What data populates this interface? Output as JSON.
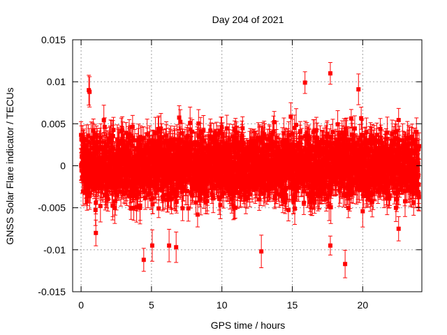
{
  "chart_data": {
    "type": "scatter",
    "title": "Day 204 of 2021",
    "xlabel": "GPS time / hours",
    "ylabel": "GNSS Solar Flare indicator / TECUs",
    "xlim": [
      -0.6,
      24.2
    ],
    "ylim": [
      -0.015,
      0.015
    ],
    "xticks": [
      0,
      5,
      10,
      15,
      20
    ],
    "xtick_labels": [
      "0",
      "5",
      "10",
      "15",
      "20"
    ],
    "yticks": [
      -0.015,
      -0.01,
      -0.005,
      0,
      0.005,
      0.01,
      0.015
    ],
    "ytick_labels": [
      "-0.015",
      "-0.01",
      "-0.005",
      "0",
      "0.005",
      "0.01",
      "0.015"
    ],
    "grid": true,
    "legend": "none",
    "error_bars": true,
    "point_color": "#ff0000",
    "series": [
      {
        "x_start": 0.0,
        "x_end": 24.0,
        "points_per_hour": 120,
        "y_typical_range": [
          -0.006,
          0.006
        ],
        "error_bar_typical": 0.0015,
        "outliers": [
          {
            "x": 0.55,
            "y": 0.009
          },
          {
            "x": 0.6,
            "y": 0.0088
          },
          {
            "x": 4.45,
            "y": -0.0112
          },
          {
            "x": 5.05,
            "y": -0.0095
          },
          {
            "x": 6.25,
            "y": -0.0095
          },
          {
            "x": 6.75,
            "y": -0.0097
          },
          {
            "x": 12.8,
            "y": -0.0102
          },
          {
            "x": 15.9,
            "y": 0.0099
          },
          {
            "x": 17.7,
            "y": 0.011
          },
          {
            "x": 17.7,
            "y": -0.0095
          },
          {
            "x": 18.75,
            "y": -0.0117
          },
          {
            "x": 19.7,
            "y": 0.0091
          },
          {
            "x": 22.55,
            "y": -0.0075
          },
          {
            "x": 1.05,
            "y": -0.008
          }
        ]
      }
    ]
  }
}
